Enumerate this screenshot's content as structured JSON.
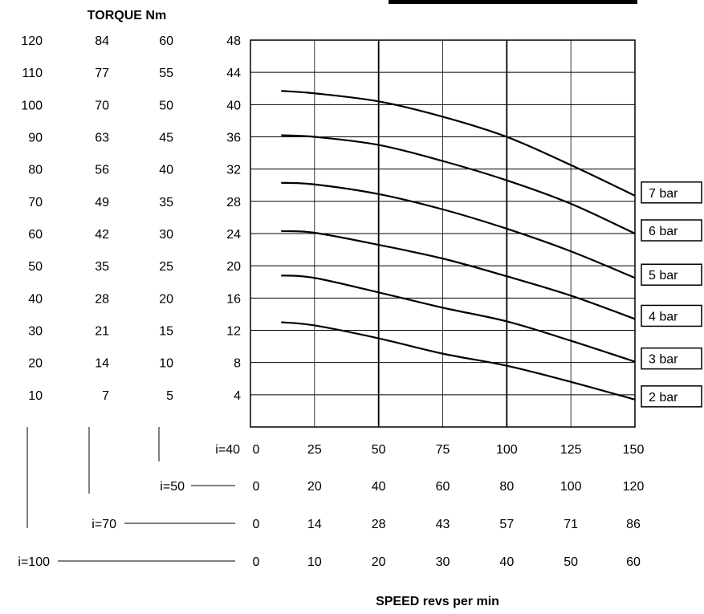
{
  "title": "TORQUE Nm",
  "xlabel": "SPEED revs per min",
  "colors": {
    "background": "#ffffff",
    "ink": "#000000"
  },
  "torque_scales": [
    {
      "ratio_label": "i=100",
      "ticks": [
        "120",
        "110",
        "100",
        "90",
        "80",
        "70",
        "60",
        "50",
        "40",
        "30",
        "20",
        "10"
      ]
    },
    {
      "ratio_label": "i=70",
      "ticks": [
        "84",
        "77",
        "70",
        "63",
        "56",
        "49",
        "42",
        "35",
        "28",
        "21",
        "14",
        "7"
      ]
    },
    {
      "ratio_label": "i=50",
      "ticks": [
        "60",
        "55",
        "50",
        "45",
        "40",
        "35",
        "30",
        "25",
        "20",
        "15",
        "10",
        "5"
      ]
    },
    {
      "ratio_label": "i=40",
      "ticks": [
        "48",
        "44",
        "40",
        "36",
        "32",
        "28",
        "24",
        "20",
        "16",
        "12",
        "8",
        "4"
      ]
    }
  ],
  "speed_scales": [
    {
      "ratio_label": "i=40",
      "ticks": [
        "0",
        "25",
        "50",
        "75",
        "100",
        "125",
        "150"
      ]
    },
    {
      "ratio_label": "i=50",
      "ticks": [
        "0",
        "20",
        "40",
        "60",
        "80",
        "100",
        "120"
      ]
    },
    {
      "ratio_label": "i=70",
      "ticks": [
        "0",
        "14",
        "28",
        "43",
        "57",
        "71",
        "86"
      ]
    },
    {
      "ratio_label": "i=100",
      "ticks": [
        "0",
        "10",
        "20",
        "30",
        "40",
        "50",
        "60"
      ]
    }
  ],
  "chart_data": {
    "type": "line",
    "title": "TORQUE Nm",
    "xlabel": "SPEED revs per min",
    "ylabel": "TORQUE Nm",
    "xlim": [
      0,
      150
    ],
    "ylim": [
      0,
      48
    ],
    "grid": true,
    "legend_position": "right, at the end of each line",
    "x": [
      12,
      25,
      50,
      75,
      100,
      125,
      150
    ],
    "series": [
      {
        "name": "7 bar",
        "values": [
          41.7,
          41.4,
          40.4,
          38.5,
          36.0,
          32.5,
          28.7
        ]
      },
      {
        "name": "6 bar",
        "values": [
          36.2,
          36.0,
          35.0,
          33.0,
          30.6,
          27.7,
          24.0
        ]
      },
      {
        "name": "5 bar",
        "values": [
          30.3,
          30.1,
          28.9,
          27.0,
          24.6,
          21.8,
          18.5
        ]
      },
      {
        "name": "4 bar",
        "values": [
          24.3,
          24.1,
          22.6,
          20.9,
          18.7,
          16.3,
          13.4
        ]
      },
      {
        "name": "3 bar",
        "values": [
          18.8,
          18.5,
          16.7,
          14.8,
          13.1,
          10.7,
          8.1
        ]
      },
      {
        "name": "2 bar",
        "values": [
          13.0,
          12.6,
          11.0,
          9.1,
          7.6,
          5.6,
          3.4
        ]
      }
    ]
  }
}
